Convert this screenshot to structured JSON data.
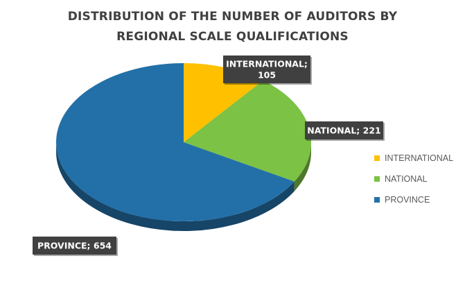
{
  "chart_data": {
    "type": "pie",
    "title": "DISTRIBUTION OF THE NUMBER OF AUDITORS BY REGIONAL SCALE QUALIFICATIONS",
    "title_lines": [
      "DISTRIBUTION OF THE NUMBER OF AUDITORS BY",
      "REGIONAL SCALE QUALIFICATIONS"
    ],
    "categories": [
      "INTERNATIONAL",
      "NATIONAL",
      "PROVINCE"
    ],
    "values": [
      105,
      221,
      654
    ],
    "data_labels": [
      "INTERNATIONAL; 105",
      "NATIONAL; 221",
      "PROVINCE; 654"
    ],
    "colors": [
      "#FFC000",
      "#7CC244",
      "#2370A8"
    ],
    "legend_position": "right"
  }
}
